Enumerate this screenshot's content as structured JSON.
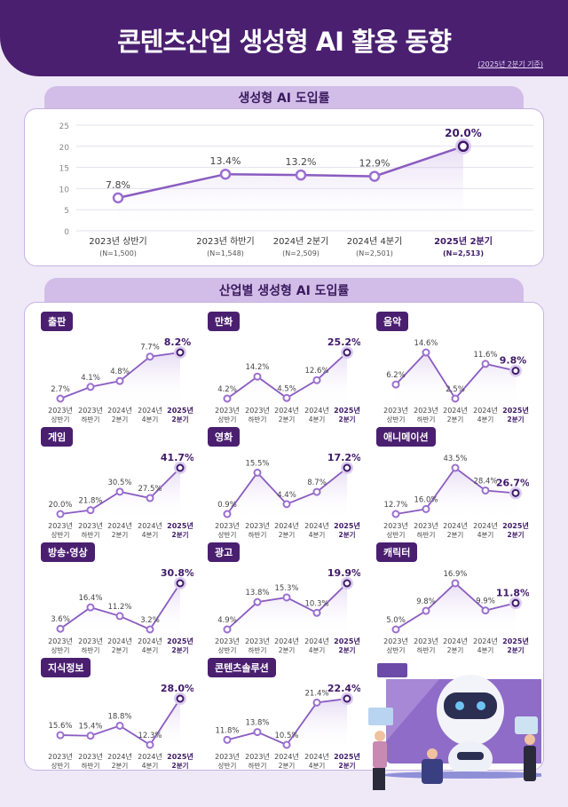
{
  "header": {
    "title": "콘텐츠산업 생성형 AI 활용 동향",
    "basis": "(2025년 2분기 기준)"
  },
  "overall": {
    "section_title": "생성형 AI 도입률"
  },
  "industry": {
    "section_title": "산업별 생성형 AI 도입률"
  },
  "colors": {
    "header": "#4a1f70",
    "line": "#8a5cc0",
    "highlight": "#3f1a68",
    "background": "#efe9f7"
  },
  "chart_data": [
    {
      "type": "line",
      "title": "생성형 AI 도입률",
      "categories": [
        "2023년 상반기",
        "2023년 하반기",
        "2024년 2분기",
        "2024년 4분기",
        "2025년 2분기"
      ],
      "sample_sizes": [
        "(N=1,500)",
        "(N=1,548)",
        "(N=2,509)",
        "(N=2,501)",
        "(N=2,513)"
      ],
      "values": [
        7.8,
        13.4,
        13.2,
        12.9,
        20.0
      ],
      "data_labels": [
        "7.8%",
        "13.4%",
        "13.2%",
        "12.9%",
        "20.0%"
      ],
      "ylim": [
        0,
        25
      ],
      "yticks": [
        "0",
        "5",
        "10",
        "15",
        "20",
        "25"
      ],
      "grid": true
    },
    {
      "type": "line",
      "title": "출판",
      "values": [
        2.7,
        4.1,
        4.8,
        7.7,
        8.2
      ],
      "data_labels": [
        "2.7%",
        "4.1%",
        "4.8%",
        "7.7%",
        "8.2%"
      ]
    },
    {
      "type": "line",
      "title": "만화",
      "values": [
        4.2,
        14.2,
        4.5,
        12.6,
        25.2
      ],
      "data_labels": [
        "4.2%",
        "14.2%",
        "4.5%",
        "12.6%",
        "25.2%"
      ]
    },
    {
      "type": "line",
      "title": "음악",
      "values": [
        6.2,
        14.6,
        2.5,
        11.6,
        9.8
      ],
      "data_labels": [
        "6.2%",
        "14.6%",
        "2.5%",
        "11.6%",
        "9.8%"
      ]
    },
    {
      "type": "line",
      "title": "게임",
      "values": [
        20.0,
        21.8,
        30.5,
        27.5,
        41.7
      ],
      "data_labels": [
        "20.0%",
        "21.8%",
        "30.5%",
        "27.5%",
        "41.7%"
      ]
    },
    {
      "type": "line",
      "title": "영화",
      "values": [
        0.9,
        15.5,
        4.4,
        8.7,
        17.2
      ],
      "data_labels": [
        "0.9%",
        "15.5%",
        "4.4%",
        "8.7%",
        "17.2%"
      ]
    },
    {
      "type": "line",
      "title": "애니메이션",
      "values": [
        12.7,
        16.0,
        43.5,
        28.4,
        26.7
      ],
      "data_labels": [
        "12.7%",
        "16.0%",
        "43.5%",
        "28.4%",
        "26.7%"
      ]
    },
    {
      "type": "line",
      "title": "방송·영상",
      "values": [
        3.6,
        16.4,
        11.2,
        3.2,
        30.8
      ],
      "data_labels": [
        "3.6%",
        "16.4%",
        "11.2%",
        "3.2%",
        "30.8%"
      ]
    },
    {
      "type": "line",
      "title": "광고",
      "values": [
        4.9,
        13.8,
        15.3,
        10.3,
        19.9
      ],
      "data_labels": [
        "4.9%",
        "13.8%",
        "15.3%",
        "10.3%",
        "19.9%"
      ]
    },
    {
      "type": "line",
      "title": "캐릭터",
      "values": [
        5.0,
        9.8,
        16.9,
        9.9,
        11.8
      ],
      "data_labels": [
        "5.0%",
        "9.8%",
        "16.9%",
        "9.9%",
        "11.8%"
      ]
    },
    {
      "type": "line",
      "title": "지식정보",
      "values": [
        15.6,
        15.4,
        18.8,
        12.3,
        28.0
      ],
      "data_labels": [
        "15.6%",
        "15.4%",
        "18.8%",
        "12.3%",
        "28.0%"
      ]
    },
    {
      "type": "line",
      "title": "콘텐츠솔루션",
      "values": [
        11.8,
        13.8,
        10.5,
        21.4,
        22.4
      ],
      "data_labels": [
        "11.8%",
        "13.8%",
        "10.5%",
        "21.4%",
        "22.4%"
      ]
    }
  ],
  "small_categories": [
    [
      "2023년",
      "상반기"
    ],
    [
      "2023년",
      "하반기"
    ],
    [
      "2024년",
      "2분기"
    ],
    [
      "2024년",
      "4분기"
    ],
    [
      "2025년",
      "2분기"
    ]
  ]
}
